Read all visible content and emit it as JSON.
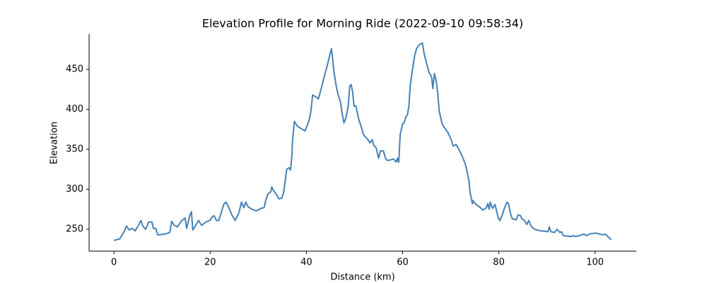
{
  "chart_data": {
    "type": "line",
    "title": "Elevation Profile for Morning Ride (2022-09-10 09:58:34)",
    "xlabel": "Distance (km)",
    "ylabel": "Elevation",
    "color": "#4682b4",
    "x": [
      0,
      1.2,
      2.2,
      2.6,
      3.2,
      3.8,
      4.4,
      5.1,
      5.6,
      6.0,
      6.6,
      7.2,
      7.9,
      8.2,
      8.7,
      9.1,
      10.6,
      11.6,
      12.0,
      12.5,
      13.2,
      14.1,
      14.8,
      15.1,
      15.8,
      16.1,
      16.4,
      17.0,
      17.6,
      18.2,
      19.1,
      19.9,
      20.5,
      20.8,
      21.3,
      21.8,
      22.4,
      22.9,
      23.3,
      23.9,
      24.5,
      25.2,
      26.0,
      26.5,
      27.0,
      27.4,
      27.9,
      28.7,
      29.6,
      30.5,
      31.2,
      31.5,
      32.0,
      32.6,
      32.8,
      33.1,
      33.7,
      34.3,
      34.9,
      35.3,
      35.9,
      36.4,
      36.7,
      37.0,
      37.1,
      37.5,
      38.1,
      38.9,
      39.7,
      40.5,
      40.9,
      41.3,
      42.1,
      42.5,
      43.3,
      43.7,
      44.3,
      44.9,
      45.2,
      45.5,
      45.7,
      46.2,
      46.6,
      47.1,
      47.4,
      47.8,
      48.2,
      48.7,
      49.0,
      49.3,
      49.6,
      49.9,
      50.3,
      50.9,
      51.3,
      51.9,
      52.8,
      53.2,
      53.7,
      54.0,
      54.5,
      55.0,
      55.4,
      56.0,
      56.5,
      56.9,
      57.6,
      58.1,
      58.7,
      58.9,
      59.2,
      59.5,
      60.0,
      60.3,
      60.7,
      61.0,
      61.3,
      61.6,
      62.0,
      62.5,
      62.9,
      63.5,
      64.1,
      64.5,
      65.0,
      65.5,
      66.0,
      66.3,
      66.6,
      67.0,
      67.3,
      67.6,
      68.2,
      68.6,
      69.4,
      70.1,
      70.5,
      71.1,
      71.7,
      72.4,
      73.0,
      73.3,
      73.8,
      74.0,
      74.5,
      74.6,
      75.1,
      75.7,
      76.2,
      76.7,
      77.4,
      77.7,
      78.0,
      78.2,
      78.7,
      79.2,
      79.6,
      79.9,
      80.2,
      80.6,
      81.2,
      81.7,
      82.0,
      82.4,
      82.8,
      83.6,
      84.0,
      84.5,
      84.8,
      85.3,
      85.8,
      86.2,
      86.7,
      87.4,
      88.7,
      90.2,
      90.5,
      90.8,
      91.6,
      92.1,
      92.7,
      93.0,
      93.4,
      95.0,
      95.5,
      95.9,
      96.8,
      97.2,
      97.7,
      98.2,
      98.8,
      99.7,
      100.4,
      100.9,
      101.6,
      102.1,
      102.8,
      103.4
    ],
    "values": [
      236,
      238,
      248,
      254,
      249,
      251,
      248,
      255,
      261,
      254,
      250,
      259,
      259,
      251,
      251,
      243,
      244,
      246,
      260,
      255,
      253,
      261,
      264,
      251,
      268,
      272,
      249,
      255,
      261,
      255,
      259,
      261,
      266,
      267,
      261,
      261,
      273,
      282,
      284,
      277,
      268,
      261,
      271,
      284,
      277,
      284,
      278,
      275,
      273,
      276,
      277,
      285,
      294,
      297,
      303,
      299,
      294,
      288,
      289,
      297,
      325,
      327,
      324,
      343,
      360,
      385,
      379,
      376,
      373,
      385,
      396,
      418,
      415,
      413,
      431,
      441,
      454,
      469,
      476,
      461,
      448,
      429,
      418,
      409,
      396,
      383,
      389,
      404,
      429,
      431,
      422,
      404,
      404,
      387,
      380,
      368,
      362,
      358,
      362,
      355,
      352,
      339,
      348,
      348,
      338,
      336,
      337,
      338,
      334,
      339,
      334,
      369,
      382,
      383,
      391,
      393,
      404,
      431,
      448,
      467,
      476,
      481,
      483,
      469,
      457,
      446,
      441,
      426,
      445,
      435,
      420,
      398,
      382,
      378,
      371,
      362,
      354,
      356,
      350,
      341,
      332,
      325,
      310,
      297,
      282,
      286,
      282,
      279,
      277,
      274,
      277,
      282,
      275,
      284,
      276,
      281,
      271,
      264,
      261,
      266,
      277,
      284,
      282,
      270,
      263,
      262,
      268,
      267,
      263,
      261,
      256,
      261,
      254,
      250,
      248,
      247,
      253,
      247,
      246,
      250,
      246,
      247,
      242,
      241,
      242,
      241,
      242,
      243,
      244,
      242,
      244,
      245,
      245,
      244,
      243,
      244,
      240,
      237
    ],
    "xlim": [
      -5.17,
      108.57
    ],
    "ylim": [
      222.6,
      494.3
    ],
    "xticks": [
      0,
      20,
      40,
      60,
      80,
      100
    ],
    "yticks": [
      250,
      300,
      350,
      400,
      450
    ],
    "grid": false
  }
}
